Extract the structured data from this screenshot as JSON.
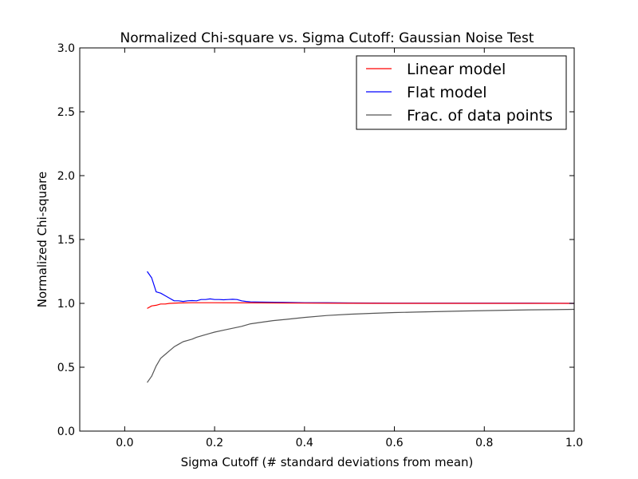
{
  "chart_data": {
    "type": "line",
    "title": "Normalized Chi-square vs. Sigma Cutoff: Gaussian Noise Test",
    "xlabel": "Sigma Cutoff  (# standard deviations from mean)",
    "ylabel": "Normalized Chi-square",
    "xlim": [
      -0.1,
      1.0
    ],
    "ylim": [
      0.0,
      3.0
    ],
    "x_ticks": [
      0.0,
      0.2,
      0.4,
      0.6,
      0.8,
      1.0
    ],
    "x_tick_labels": [
      "0.0",
      "0.2",
      "0.4",
      "0.6",
      "0.8",
      "1.0"
    ],
    "y_ticks": [
      0.0,
      0.5,
      1.0,
      1.5,
      2.0,
      2.5,
      3.0
    ],
    "y_tick_labels": [
      "0.0",
      "0.5",
      "1.0",
      "1.5",
      "2.0",
      "2.5",
      "3.0"
    ],
    "grid": false,
    "legend_position": "top-right",
    "series": [
      {
        "name": "Linear model",
        "color": "#ff0000",
        "x": [
          0.05,
          0.06,
          0.07,
          0.08,
          0.09,
          0.1,
          0.12,
          0.15,
          0.2,
          0.3,
          0.4,
          0.5,
          0.6,
          0.7,
          0.8,
          0.9,
          1.0
        ],
        "y": [
          0.96,
          0.98,
          0.985,
          0.995,
          0.995,
          1.0,
          1.003,
          1.005,
          1.005,
          1.004,
          1.002,
          1.001,
          1.0,
          1.0,
          1.0,
          1.0,
          1.0
        ]
      },
      {
        "name": "Flat model",
        "color": "#0000ff",
        "x": [
          0.05,
          0.06,
          0.07,
          0.08,
          0.09,
          0.1,
          0.11,
          0.12,
          0.13,
          0.14,
          0.15,
          0.16,
          0.17,
          0.18,
          0.19,
          0.2,
          0.21,
          0.22,
          0.23,
          0.24,
          0.25,
          0.26,
          0.27,
          0.28,
          0.3,
          0.35,
          0.4,
          0.45,
          0.5,
          0.6,
          0.7,
          0.8,
          0.9,
          1.0
        ],
        "y": [
          1.25,
          1.2,
          1.09,
          1.08,
          1.06,
          1.04,
          1.02,
          1.02,
          1.015,
          1.02,
          1.022,
          1.02,
          1.03,
          1.03,
          1.035,
          1.03,
          1.03,
          1.028,
          1.03,
          1.032,
          1.03,
          1.02,
          1.015,
          1.012,
          1.01,
          1.008,
          1.005,
          1.005,
          1.003,
          1.002,
          1.002,
          1.002,
          1.002,
          1.0
        ]
      },
      {
        "name": "Frac. of data points",
        "color": "#555555",
        "x": [
          0.05,
          0.06,
          0.07,
          0.08,
          0.09,
          0.1,
          0.11,
          0.12,
          0.13,
          0.14,
          0.15,
          0.16,
          0.17,
          0.18,
          0.19,
          0.2,
          0.22,
          0.24,
          0.26,
          0.28,
          0.3,
          0.33,
          0.36,
          0.4,
          0.45,
          0.5,
          0.55,
          0.6,
          0.65,
          0.7,
          0.75,
          0.8,
          0.85,
          0.9,
          0.95,
          1.0
        ],
        "y": [
          0.38,
          0.43,
          0.51,
          0.57,
          0.6,
          0.63,
          0.66,
          0.68,
          0.7,
          0.71,
          0.72,
          0.735,
          0.745,
          0.755,
          0.765,
          0.775,
          0.79,
          0.805,
          0.82,
          0.84,
          0.85,
          0.865,
          0.875,
          0.89,
          0.905,
          0.915,
          0.922,
          0.928,
          0.932,
          0.936,
          0.94,
          0.943,
          0.946,
          0.949,
          0.951,
          0.953
        ]
      }
    ]
  }
}
